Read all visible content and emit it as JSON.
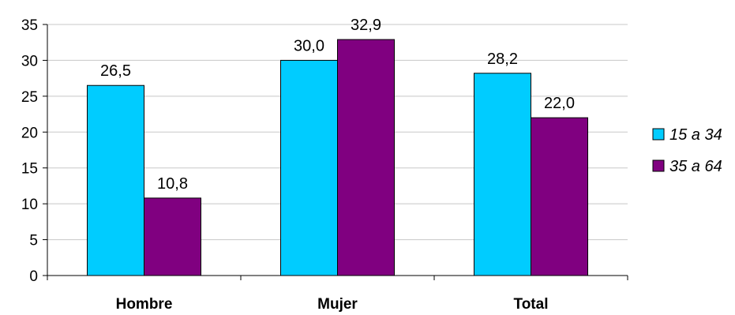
{
  "chart_data": {
    "type": "bar",
    "categories": [
      "Hombre",
      "Mujer",
      "Total"
    ],
    "series": [
      {
        "name": "15 a 34",
        "values": [
          26.5,
          30.0,
          28.2
        ],
        "labels": [
          "26,5",
          "30,0",
          "28,2"
        ],
        "color": "#00CCFF"
      },
      {
        "name": "35 a 64",
        "values": [
          10.8,
          32.9,
          22.0
        ],
        "labels": [
          "10,8",
          "32,9",
          "22,0"
        ],
        "color": "#800080"
      }
    ],
    "ylim": [
      0,
      35
    ],
    "yticks": [
      0,
      5,
      10,
      15,
      20,
      25,
      30,
      35
    ],
    "grid": true,
    "legend_position": "right",
    "xlabel": "",
    "ylabel": ""
  }
}
